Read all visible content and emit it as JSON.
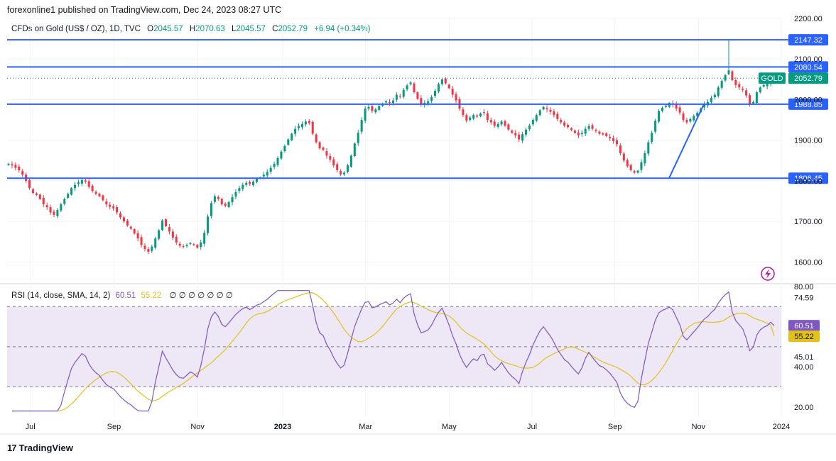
{
  "header": {
    "published": "forexonline1 published on TradingView.com, Dec 24, 2023 08:27 UTC"
  },
  "legend": {
    "symbol": "CFDs on Gold (US$ / OZ), 1D, TVC",
    "o_label": "O",
    "o_value": "2045.57",
    "h_label": "H",
    "h_value": "2070.63",
    "l_label": "L",
    "l_value": "2045.57",
    "c_label": "C",
    "c_value": "2052.79",
    "change": "+6.94 (+0.34%)"
  },
  "rsi_legend": {
    "label": "RSI (14, close, SMA, 14, 2)",
    "rsi_value": "60.51",
    "sma_value": "55.22",
    "empty_values": "∅  ∅  ∅  ∅  ∅  ∅  ∅"
  },
  "brand": {
    "name": "TradingView",
    "mark": "17"
  },
  "colors": {
    "up": "#089981",
    "down": "#f23645",
    "hline": "#2962ff",
    "rsi": "#7e57c2",
    "rsi_sma": "#e2c21a",
    "rsi_band": "#ede7f6"
  },
  "chart_data": {
    "type": "candlestick",
    "price_axis": {
      "ticks": [
        "2200.00",
        "2100.00",
        "2000.00",
        "1900.00",
        "1800.00",
        "1700.00",
        "1600.00"
      ],
      "tick_values": [
        2200,
        2100,
        2000,
        1900,
        1800,
        1700,
        1600
      ],
      "range": [
        1550,
        2200
      ]
    },
    "time_axis": {
      "labels": [
        "Jul",
        "Sep",
        "Nov",
        "2023",
        "Mar",
        "May",
        "Jul",
        "Sep",
        "Nov",
        "2024"
      ],
      "bold": [
        false,
        false,
        false,
        true,
        false,
        false,
        false,
        false,
        false,
        false
      ],
      "positions": [
        0.03,
        0.138,
        0.246,
        0.356,
        0.463,
        0.571,
        0.678,
        0.785,
        0.893,
        1.0
      ]
    },
    "horizontal_levels": [
      {
        "value": 2147.32,
        "label": "2147.32"
      },
      {
        "value": 2080.54,
        "label": "2080.54"
      },
      {
        "value": 1988.85,
        "label": "1988.85"
      },
      {
        "value": 1806.45,
        "label": "1806.45"
      }
    ],
    "last_price": {
      "symbol": "GOLD",
      "value": 2052.79,
      "label": "2052.79"
    },
    "trendline": {
      "from": {
        "t": 0.855,
        "price": 1806.45
      },
      "to": {
        "t": 0.9,
        "price": 1988.85
      }
    },
    "close_series": [
      1842,
      1838,
      1832,
      1826,
      1815,
      1800,
      1782,
      1770,
      1765,
      1755,
      1742,
      1735,
      1722,
      1716,
      1728,
      1742,
      1755,
      1768,
      1782,
      1790,
      1796,
      1802,
      1798,
      1785,
      1775,
      1768,
      1762,
      1752,
      1742,
      1736,
      1732,
      1722,
      1710,
      1700,
      1690,
      1682,
      1670,
      1658,
      1642,
      1632,
      1625,
      1638,
      1658,
      1678,
      1702,
      1688,
      1675,
      1660,
      1648,
      1640,
      1638,
      1642,
      1646,
      1642,
      1635,
      1648,
      1672,
      1712,
      1745,
      1762,
      1755,
      1742,
      1738,
      1748,
      1760,
      1772,
      1782,
      1790,
      1795,
      1792,
      1798,
      1805,
      1808,
      1815,
      1822,
      1832,
      1842,
      1856,
      1872,
      1886,
      1902,
      1916,
      1928,
      1935,
      1940,
      1946,
      1942,
      1916,
      1895,
      1880,
      1876,
      1862,
      1852,
      1838,
      1826,
      1816,
      1820,
      1838,
      1862,
      1892,
      1918,
      1950,
      1978,
      1982,
      1972,
      1976,
      1984,
      1990,
      1996,
      1992,
      1998,
      2012,
      2008,
      2024,
      2035,
      2042,
      2018,
      2002,
      1990,
      1992,
      1996,
      2006,
      2022,
      2038,
      2050,
      2040,
      2028,
      2012,
      1998,
      1978,
      1962,
      1948,
      1956,
      1962,
      1958,
      1966,
      1968,
      1950,
      1944,
      1936,
      1940,
      1946,
      1936,
      1926,
      1918,
      1912,
      1902,
      1915,
      1926,
      1936,
      1950,
      1962,
      1974,
      1982,
      1976,
      1970,
      1962,
      1952,
      1944,
      1936,
      1932,
      1925,
      1918,
      1912,
      1918,
      1928,
      1935,
      1928,
      1922,
      1916,
      1914,
      1910,
      1905,
      1898,
      1890,
      1868,
      1850,
      1836,
      1826,
      1820,
      1825,
      1846,
      1868,
      1895,
      1918,
      1948,
      1972,
      1980,
      1985,
      1992,
      1988,
      1978,
      1968,
      1950,
      1944,
      1952,
      1960,
      1968,
      1978,
      1988,
      1994,
      2004,
      2012,
      2030,
      2046,
      2060,
      2072,
      2048,
      2036,
      2030,
      2024,
      2010,
      1988,
      1994,
      2018,
      2030,
      2036,
      2040,
      2048,
      2052
    ],
    "rsi": {
      "ticks": [
        "80.00",
        "74.59",
        "60.51",
        "55.22",
        "45.01",
        "40.00",
        "20.00"
      ],
      "tick_values": [
        80,
        74.59,
        60.51,
        55.22,
        45.01,
        40,
        20
      ],
      "upper_band": 70,
      "lower_band": 30,
      "middle": 50,
      "range": [
        15,
        80
      ],
      "rsi_last": 60.51,
      "sma_last": 55.22
    }
  }
}
